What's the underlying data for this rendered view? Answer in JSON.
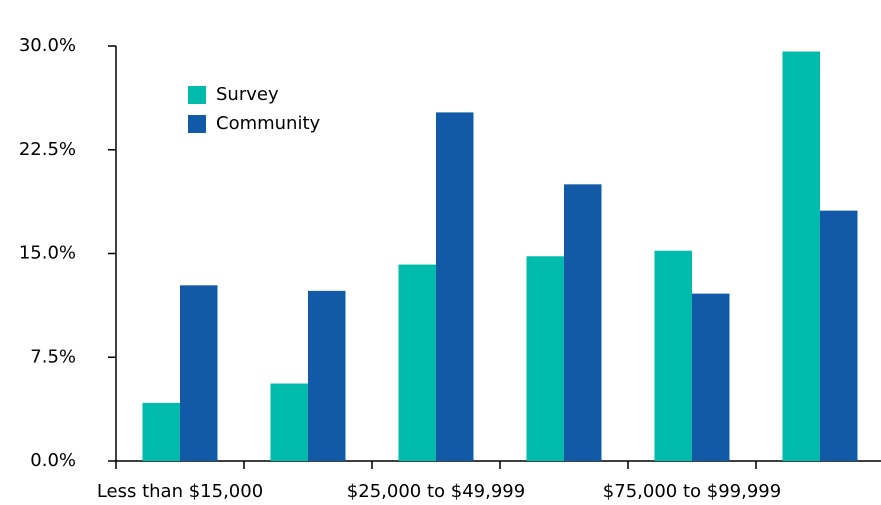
{
  "chart_data": {
    "type": "bar",
    "categories": [
      "Less than $15,000",
      null,
      "$25,000 to $49,999",
      null,
      "$75,000 to $99,999",
      null
    ],
    "series": [
      {
        "name": "Survey",
        "color": "#00bbac",
        "values": [
          4.2,
          5.6,
          14.2,
          14.8,
          15.2,
          29.6
        ]
      },
      {
        "name": "Community",
        "color": "#1259a8",
        "values": [
          12.7,
          12.3,
          25.2,
          20.0,
          12.1,
          18.1
        ]
      }
    ],
    "ylim": [
      0,
      30
    ],
    "yticks": [
      {
        "value": 0,
        "label": "0.0%"
      },
      {
        "value": 7.5,
        "label": "7.5%"
      },
      {
        "value": 15,
        "label": "15.0%"
      },
      {
        "value": 22.5,
        "label": "22.5%"
      },
      {
        "value": 30,
        "label": "30.0%"
      }
    ],
    "legend": "upper-left"
  }
}
